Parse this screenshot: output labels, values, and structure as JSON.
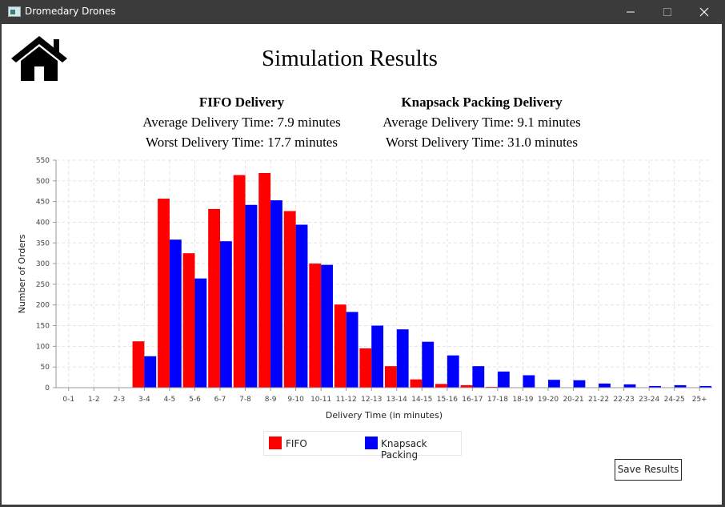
{
  "window": {
    "title": "Dromedary Drones"
  },
  "header": {
    "title": "Simulation Results"
  },
  "stats": {
    "fifo": {
      "heading": "FIFO Delivery",
      "average": "Average Delivery Time: 7.9 minutes",
      "worst": "Worst Delivery Time: 17.7 minutes"
    },
    "knapsack": {
      "heading": "Knapsack Packing Delivery",
      "average": "Average Delivery Time: 9.1 minutes",
      "worst": "Worst Delivery Time: 31.0 minutes"
    }
  },
  "chart_data": {
    "type": "bar",
    "xlabel": "Delivery Time (in minutes)",
    "ylabel": "Number of Orders",
    "ylim": [
      0,
      550
    ],
    "yticks": [
      0,
      50,
      100,
      150,
      200,
      250,
      300,
      350,
      400,
      450,
      500,
      550
    ],
    "grid": true,
    "legend_position": "bottom",
    "categories": [
      "0-1",
      "1-2",
      "2-3",
      "3-4",
      "4-5",
      "5-6",
      "6-7",
      "7-8",
      "8-9",
      "9-10",
      "10-11",
      "11-12",
      "12-13",
      "13-14",
      "14-15",
      "15-16",
      "16-17",
      "17-18",
      "18-19",
      "19-20",
      "20-21",
      "21-22",
      "22-23",
      "23-24",
      "24-25",
      "25+"
    ],
    "series": [
      {
        "name": "FIFO",
        "color": "#ff0000",
        "values": [
          0,
          0,
          0,
          112,
          457,
          325,
          432,
          514,
          519,
          427,
          300,
          201,
          95,
          52,
          20,
          9,
          6,
          2,
          0,
          0,
          0,
          0,
          0,
          0,
          0,
          0
        ]
      },
      {
        "name": "Knapsack Packing",
        "color": "#0000ff",
        "values": [
          0,
          0,
          0,
          76,
          358,
          264,
          354,
          442,
          453,
          394,
          297,
          183,
          150,
          141,
          111,
          78,
          52,
          39,
          30,
          19,
          18,
          10,
          8,
          4,
          6,
          4
        ]
      }
    ]
  },
  "actions": {
    "save_label": "Save Results"
  },
  "colors": {
    "fifo": "#ff0000",
    "knapsack": "#0000ff",
    "titlebar": "#3b3b3b"
  }
}
